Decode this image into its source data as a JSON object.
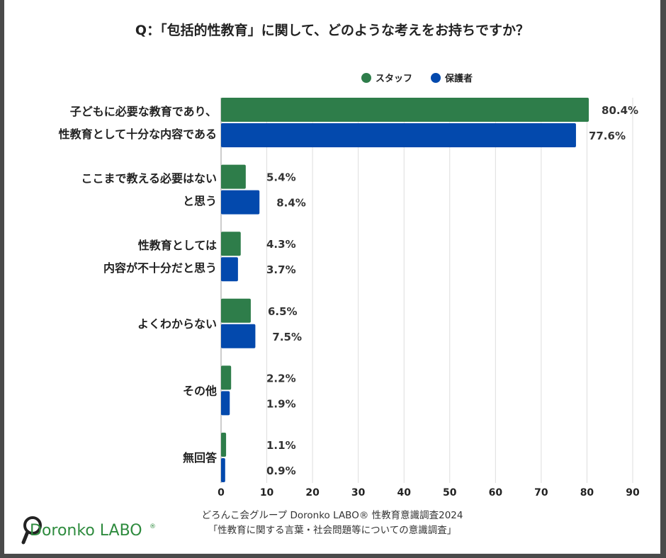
{
  "chart_data": {
    "type": "bar",
    "orientation": "horizontal",
    "title": "Q：「包括的性教育」に関して、どのような考えをお持ちですか？",
    "categories": [
      [
        "子どもに必要な教育であり、",
        "性教育として十分な内容である"
      ],
      [
        "ここまで教える必要はない",
        "と思う"
      ],
      [
        "性教育としては",
        "内容が不十分だと思う"
      ],
      [
        "よくわからない"
      ],
      [
        "その他"
      ],
      [
        "無回答"
      ]
    ],
    "series": [
      {
        "name": "スタッフ",
        "color": "#2e7d4a",
        "values": [
          80.4,
          5.4,
          4.3,
          6.5,
          2.2,
          1.1
        ],
        "labels": [
          "80.4%",
          "5.4%",
          "4.3%",
          "6.5%",
          "2.2%",
          "1.1%"
        ]
      },
      {
        "name": "保護者",
        "color": "#0349ad",
        "values": [
          77.6,
          8.4,
          3.7,
          7.5,
          1.9,
          0.9
        ],
        "labels": [
          "77.6%",
          "8.4%",
          "3.7%",
          "7.5%",
          "1.9%",
          "0.9%"
        ]
      }
    ],
    "xlim": [
      0,
      90
    ],
    "xticks": [
      "0",
      "10",
      "20",
      "30",
      "40",
      "50",
      "60",
      "70",
      "80",
      "90"
    ],
    "grid": true,
    "legend_position": "top"
  },
  "source": {
    "line1": "どろんこ会グループ Doronko LABO® 性教育意識調査2024",
    "line2": "「性教育に関する言葉・社会問題等についての意識調査」"
  },
  "logo": {
    "text": "Doronko LABO",
    "mark": "®",
    "color": "#2e8b3e"
  }
}
